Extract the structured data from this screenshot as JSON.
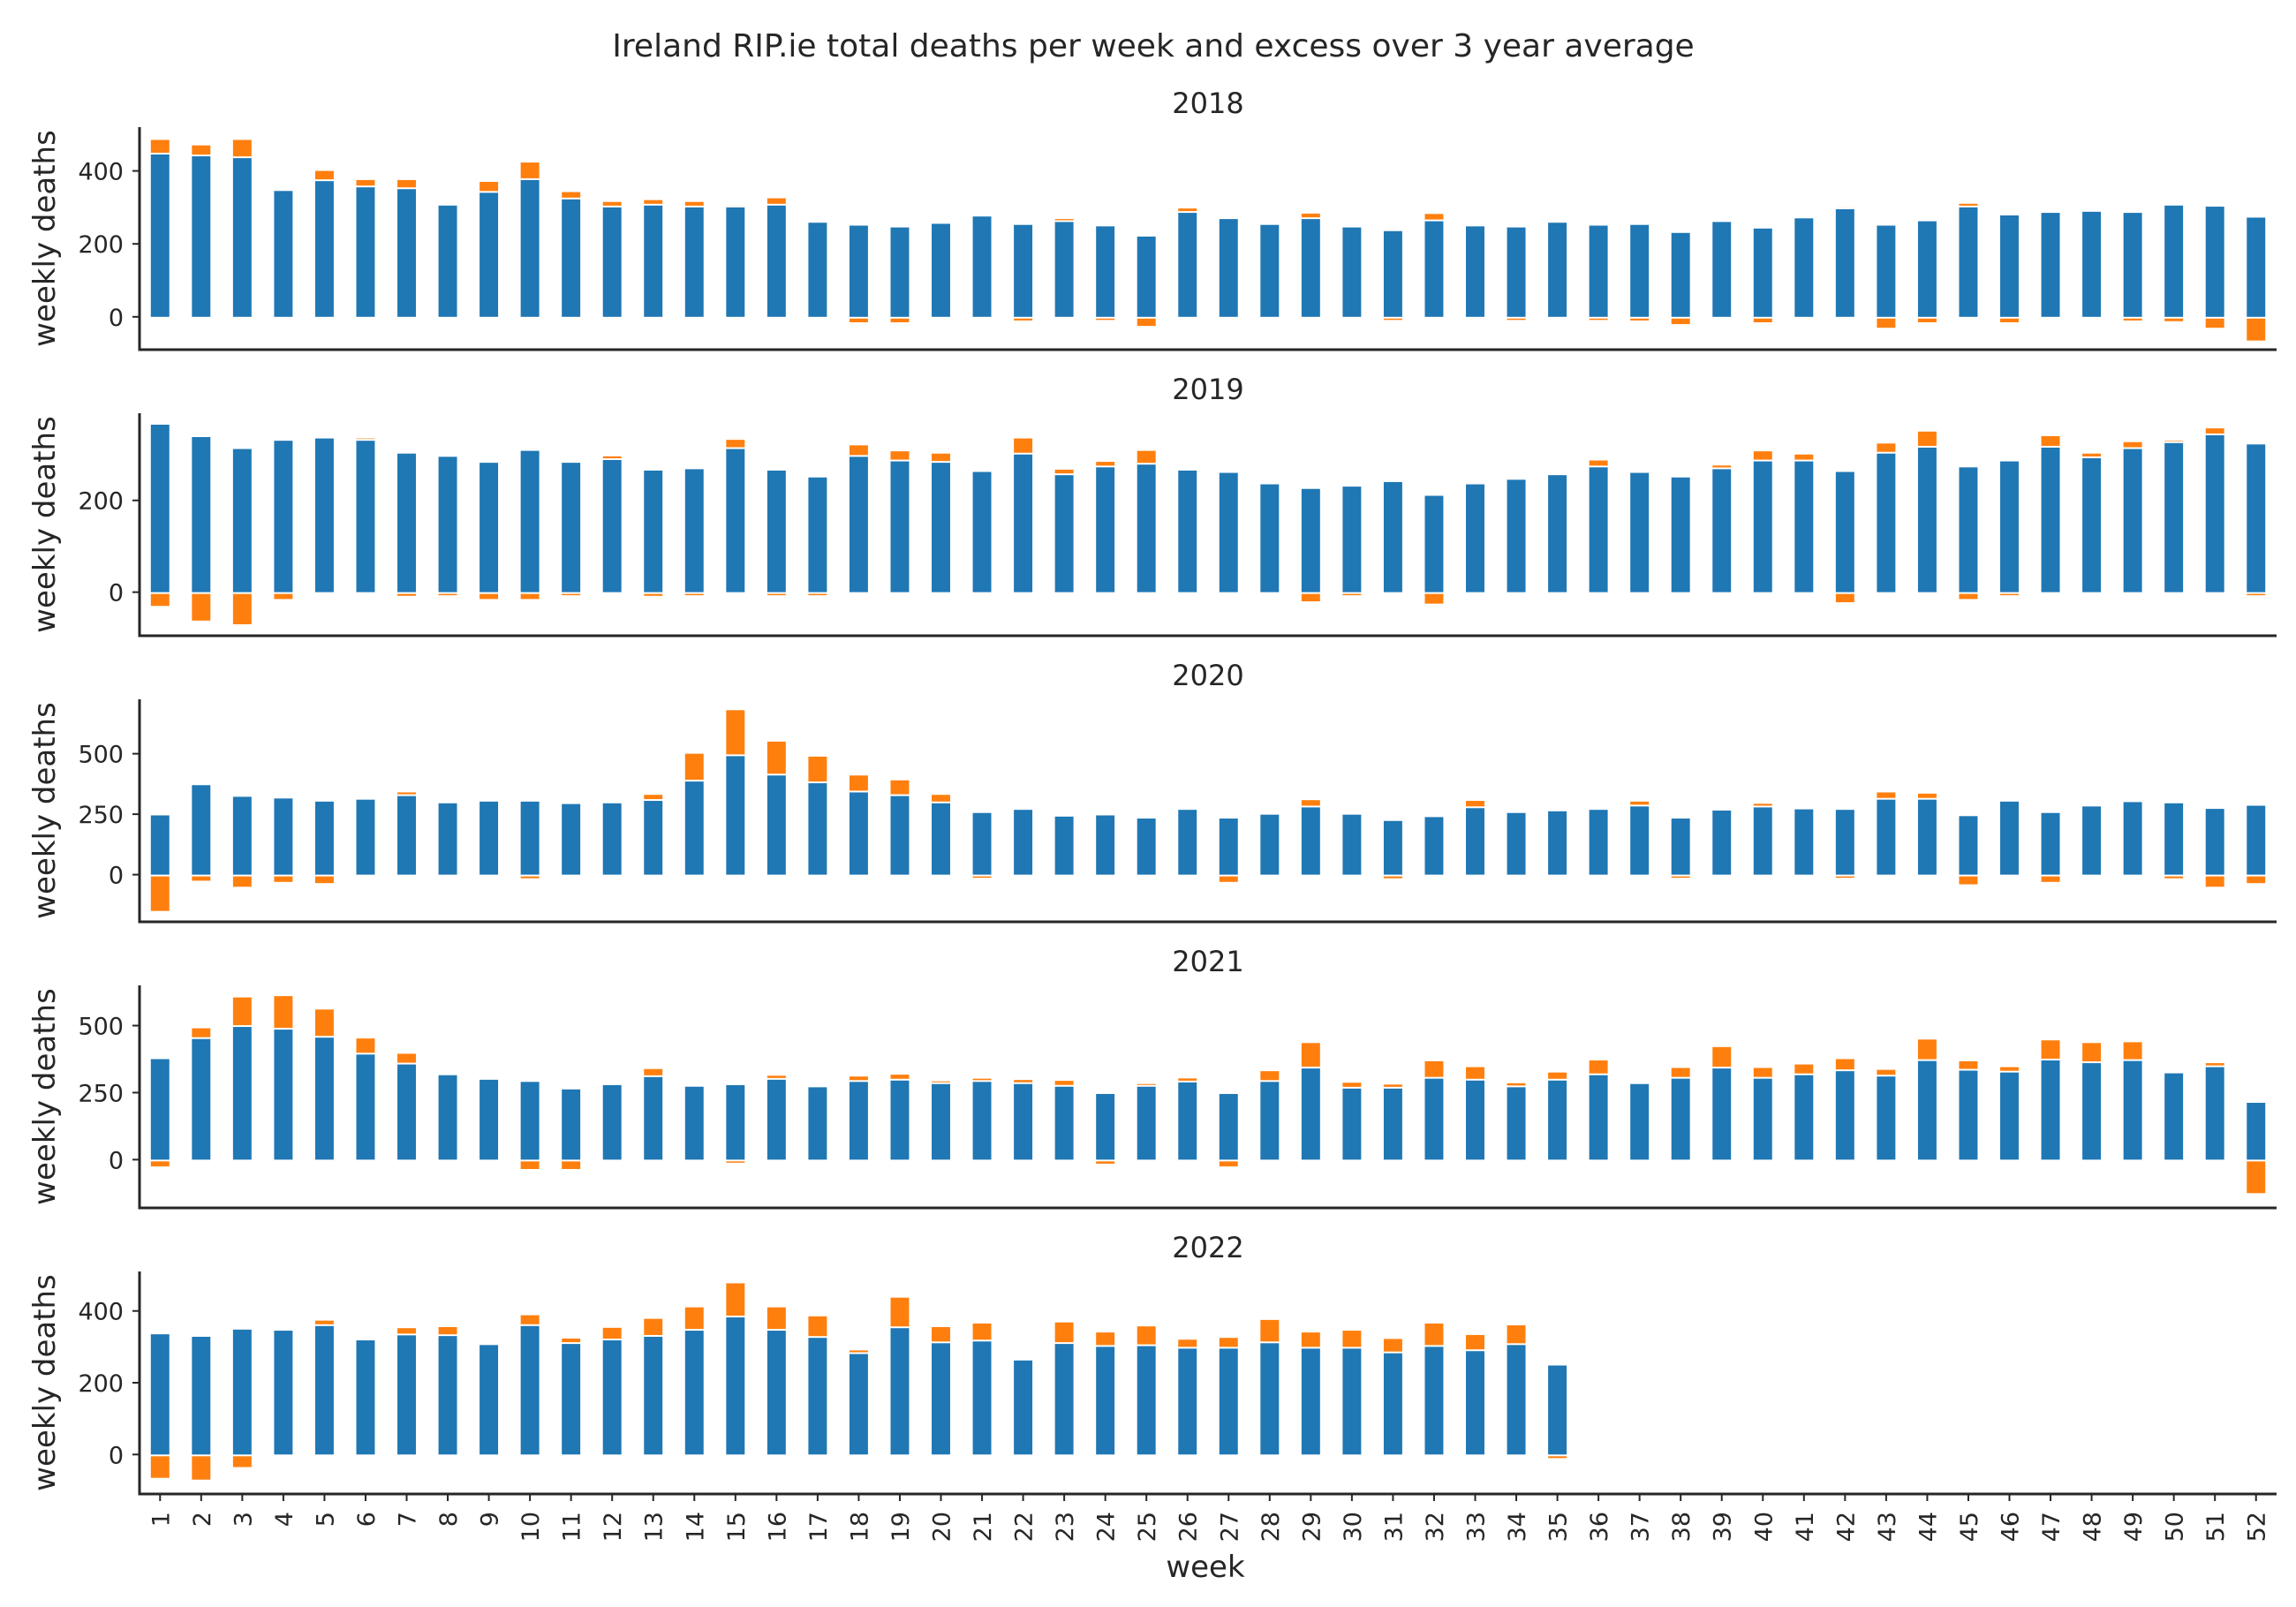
{
  "chart_data": {
    "type": "bar",
    "stacked": true,
    "title": "Ireland RIP.ie total deaths per week and excess over 3 year average",
    "xlabel": "week",
    "ylabel": "weekly deaths",
    "colors": {
      "deaths": "#1f77b4",
      "excess": "#ff7f0e"
    },
    "grid": false,
    "weeks": [
      "1",
      "2",
      "3",
      "4",
      "5",
      "6",
      "7",
      "8",
      "9",
      "10",
      "11",
      "12",
      "13",
      "14",
      "15",
      "16",
      "17",
      "18",
      "19",
      "20",
      "21",
      "22",
      "23",
      "24",
      "25",
      "26",
      "27",
      "28",
      "29",
      "30",
      "31",
      "32",
      "33",
      "34",
      "35",
      "36",
      "37",
      "38",
      "39",
      "40",
      "41",
      "42",
      "43",
      "44",
      "45",
      "46",
      "47",
      "48",
      "49",
      "50",
      "51",
      "52"
    ],
    "panels": [
      {
        "title": "2018",
        "ylim": [
          -90,
          520
        ],
        "yticks": [
          0,
          200,
          400
        ],
        "deaths": [
          445,
          440,
          435,
          345,
          372,
          355,
          350,
          305,
          340,
          375,
          322,
          300,
          305,
          300,
          300,
          305,
          258,
          250,
          245,
          255,
          275,
          252,
          260,
          248,
          220,
          285,
          268,
          252,
          268,
          245,
          235,
          262,
          248,
          245,
          258,
          250,
          252,
          230,
          260,
          242,
          270,
          295,
          250,
          262,
          300,
          278,
          285,
          288,
          285,
          305,
          302,
          272
        ],
        "excess": [
          40,
          30,
          50,
          0,
          28,
          20,
          25,
          0,
          30,
          48,
          20,
          15,
          15,
          15,
          5,
          20,
          0,
          -15,
          -15,
          0,
          0,
          -10,
          8,
          -8,
          -25,
          12,
          0,
          0,
          15,
          0,
          -5,
          20,
          0,
          -5,
          0,
          -8,
          -10,
          -20,
          0,
          -15,
          0,
          5,
          -30,
          -15,
          10,
          -15,
          0,
          0,
          -10,
          -12,
          -30,
          -65
        ]
      },
      {
        "title": "2019",
        "ylim": [
          -95,
          390
        ],
        "yticks": [
          0,
          200
        ],
        "deaths": [
          365,
          338,
          312,
          330,
          335,
          330,
          302,
          295,
          282,
          308,
          282,
          288,
          265,
          268,
          312,
          265,
          250,
          295,
          285,
          282,
          262,
          300,
          255,
          272,
          278,
          265,
          260,
          235,
          225,
          230,
          240,
          210,
          235,
          245,
          255,
          272,
          260,
          250,
          268,
          285,
          285,
          262,
          302,
          315,
          272,
          285,
          315,
          292,
          312,
          325,
          342,
          322
        ],
        "excess": [
          -30,
          -62,
          -70,
          -15,
          0,
          5,
          -8,
          -5,
          -15,
          -15,
          -5,
          8,
          -8,
          -5,
          20,
          -5,
          -5,
          25,
          22,
          20,
          0,
          35,
          12,
          12,
          30,
          0,
          0,
          0,
          -20,
          -5,
          0,
          -25,
          0,
          0,
          0,
          15,
          0,
          0,
          8,
          22,
          15,
          -22,
          22,
          35,
          -15,
          -5,
          25,
          10,
          15,
          5,
          15,
          -5
        ]
      },
      {
        "title": "2020",
        "ylim": [
          -195,
          725
        ],
        "yticks": [
          0,
          250,
          500
        ],
        "deaths": [
          245,
          370,
          322,
          315,
          302,
          310,
          325,
          295,
          302,
          302,
          292,
          295,
          305,
          385,
          490,
          410,
          378,
          340,
          325,
          295,
          255,
          268,
          240,
          245,
          232,
          268,
          232,
          248,
          278,
          248,
          222,
          238,
          275,
          255,
          262,
          268,
          282,
          232,
          265,
          278,
          270,
          268,
          310,
          310,
          242,
          302,
          255,
          282,
          300,
          295,
          272,
          285
        ],
        "excess": [
          -150,
          -25,
          -50,
          -30,
          -35,
          0,
          15,
          0,
          0,
          -15,
          0,
          5,
          25,
          115,
          190,
          140,
          110,
          70,
          65,
          35,
          -5,
          0,
          0,
          0,
          0,
          0,
          -30,
          0,
          30,
          0,
          -15,
          0,
          30,
          0,
          0,
          0,
          20,
          -10,
          0,
          15,
          0,
          -10,
          30,
          25,
          -40,
          0,
          -30,
          0,
          0,
          -15,
          -50,
          -35
        ]
      },
      {
        "title": "2021",
        "ylim": [
          -180,
          650
        ],
        "yticks": [
          0,
          250,
          500
        ],
        "deaths": [
          375,
          450,
          495,
          485,
          455,
          392,
          355,
          315,
          298,
          290,
          262,
          278,
          308,
          272,
          278,
          298,
          270,
          290,
          295,
          282,
          290,
          282,
          272,
          245,
          272,
          288,
          245,
          290,
          340,
          265,
          265,
          302,
          295,
          270,
          295,
          315,
          282,
          302,
          340,
          302,
          315,
          330,
          310,
          368,
          332,
          325,
          370,
          360,
          368,
          322,
          345,
          212
        ],
        "excess": [
          -25,
          40,
          110,
          125,
          105,
          60,
          40,
          0,
          0,
          -35,
          -35,
          0,
          30,
          0,
          -10,
          15,
          0,
          20,
          22,
          10,
          12,
          15,
          22,
          -15,
          10,
          15,
          -25,
          40,
          95,
          22,
          15,
          65,
          50,
          15,
          30,
          55,
          0,
          40,
          80,
          40,
          40,
          45,
          25,
          80,
          35,
          20,
          75,
          75,
          70,
          0,
          15,
          -125
        ]
      },
      {
        "title": "2022",
        "ylim": [
          -110,
          510
        ],
        "yticks": [
          0,
          200,
          400
        ],
        "deaths": [
          335,
          328,
          348,
          345,
          358,
          318,
          332,
          330,
          305,
          358,
          308,
          318,
          328,
          345,
          382,
          345,
          325,
          280,
          352,
          310,
          315,
          262,
          308,
          300,
          302,
          295,
          295,
          310,
          295,
          295,
          282,
          300,
          288,
          305,
          248
        ],
        "excess": [
          -65,
          -70,
          -35,
          0,
          15,
          0,
          20,
          25,
          0,
          30,
          15,
          35,
          50,
          65,
          95,
          65,
          60,
          10,
          85,
          45,
          50,
          0,
          60,
          40,
          55,
          25,
          30,
          65,
          45,
          50,
          40,
          65,
          45,
          55,
          -10
        ]
      }
    ]
  }
}
